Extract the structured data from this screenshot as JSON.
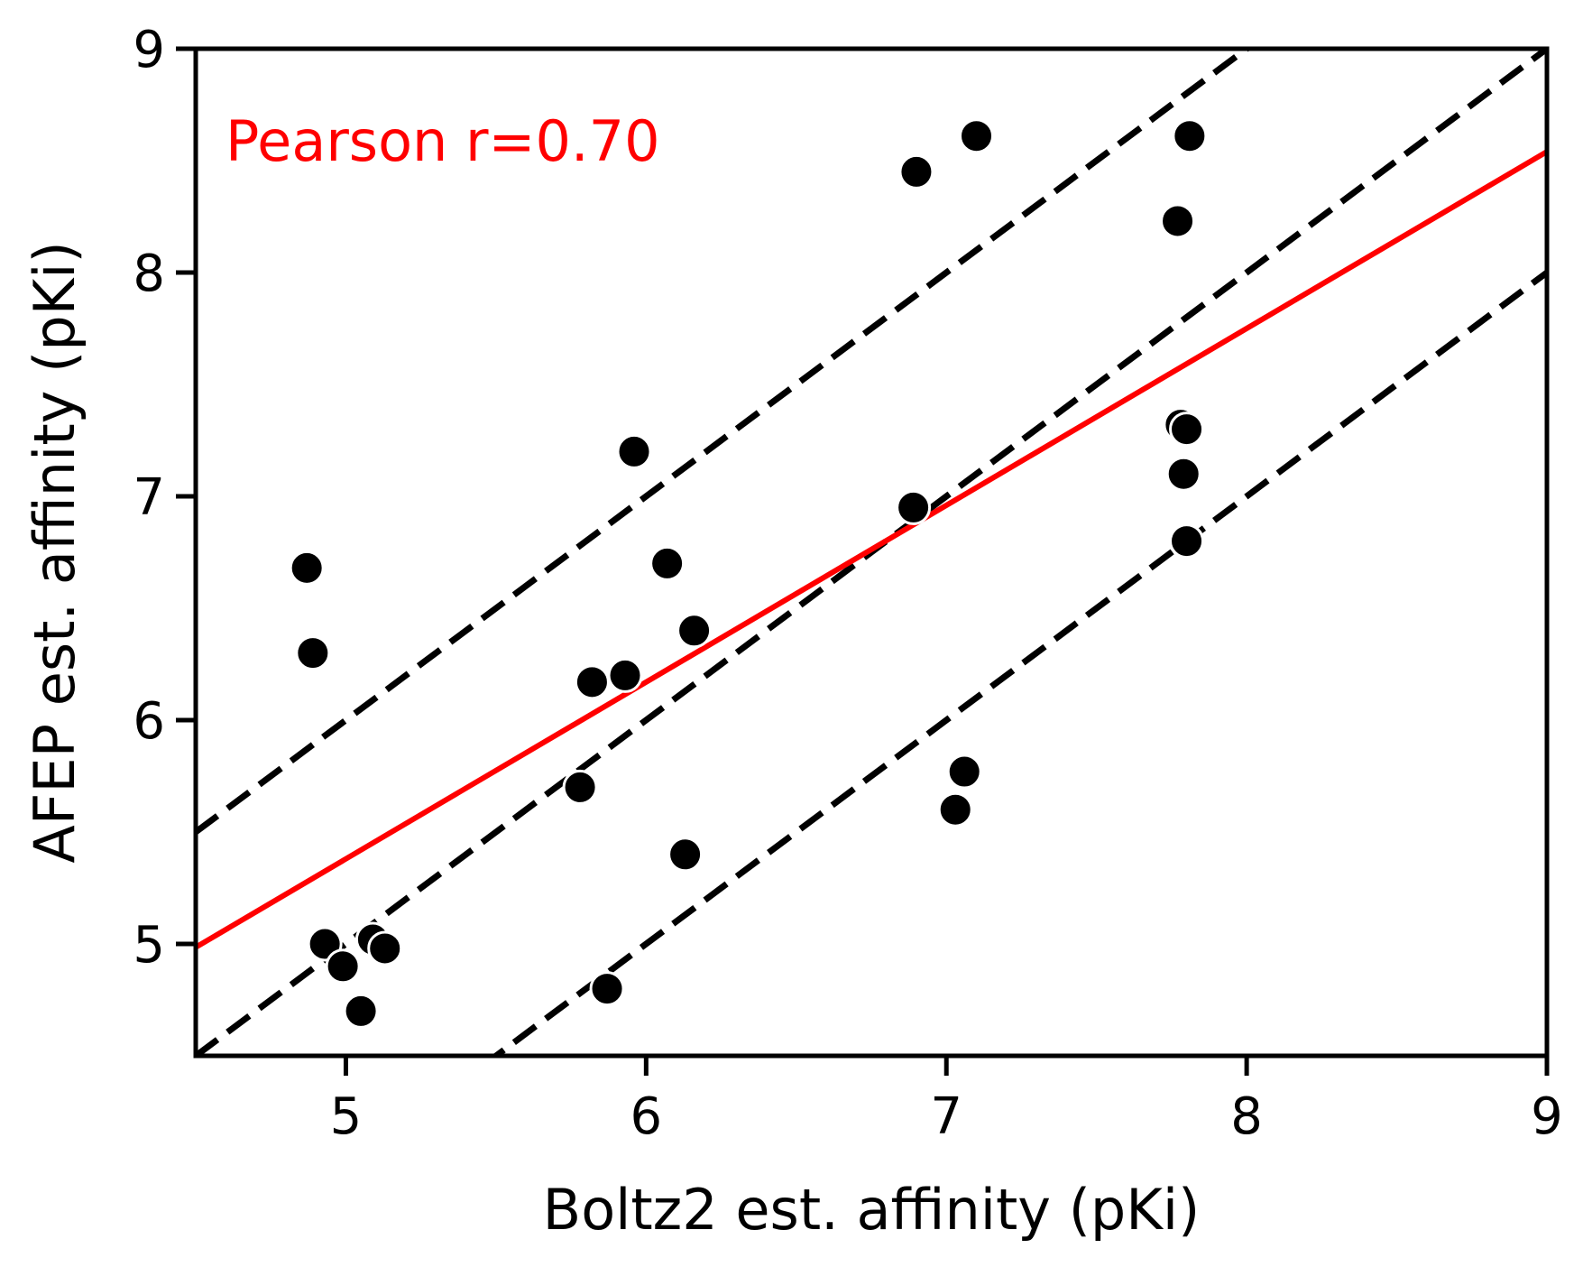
{
  "chart_data": {
    "type": "scatter",
    "xlabel": "Boltz2 est. affinity (pKi)",
    "ylabel": "AFEP est. affinity (pKi)",
    "xlim": [
      4.5,
      9
    ],
    "ylim": [
      4.5,
      9
    ],
    "xticks": [
      "5",
      "6",
      "7",
      "8",
      "9"
    ],
    "yticks": [
      "5",
      "6",
      "7",
      "8",
      "9"
    ],
    "grid": false,
    "annotation": {
      "text": "Pearson r=0.70",
      "color": "#ff0000"
    },
    "points": {
      "color": "#000000",
      "x": [
        4.87,
        4.89,
        4.93,
        4.99,
        5.05,
        5.09,
        5.13,
        5.78,
        5.82,
        5.87,
        5.93,
        5.96,
        6.07,
        6.13,
        6.16,
        6.89,
        6.9,
        7.03,
        7.06,
        7.1,
        7.77,
        7.78,
        7.79,
        7.8,
        7.8,
        7.81
      ],
      "y": [
        6.68,
        6.3,
        5.0,
        4.9,
        4.7,
        5.02,
        4.98,
        5.7,
        6.17,
        4.8,
        6.2,
        7.2,
        6.7,
        5.4,
        6.4,
        6.95,
        8.45,
        5.6,
        5.77,
        8.61,
        8.23,
        7.32,
        7.1,
        6.8,
        7.3,
        8.61
      ]
    },
    "fit_line": {
      "color": "#ff0000",
      "slope": 0.79,
      "intercept": 1.43
    },
    "reference_lines": [
      {
        "color": "#000000",
        "style": "dashed",
        "slope": 1,
        "intercept": 1
      },
      {
        "color": "#000000",
        "style": "dashed",
        "slope": 1,
        "intercept": 0
      },
      {
        "color": "#000000",
        "style": "dashed",
        "slope": 1,
        "intercept": -1
      }
    ]
  }
}
